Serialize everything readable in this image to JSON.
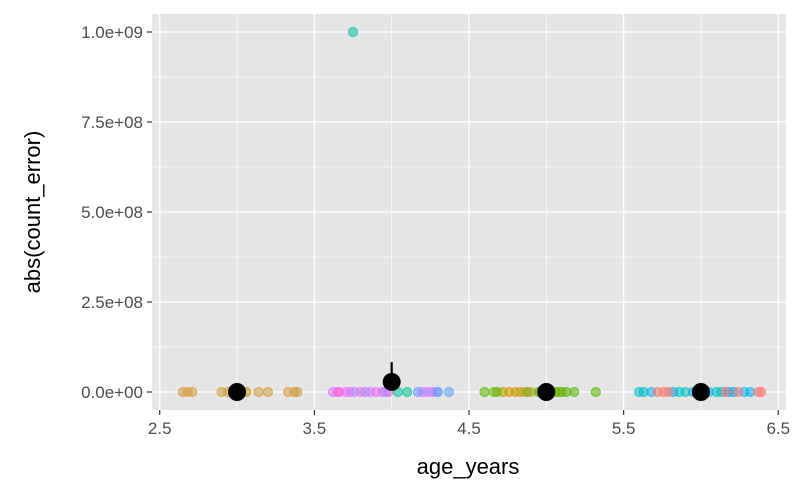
{
  "chart_data": {
    "type": "scatter",
    "title": "",
    "xlabel": "age_years",
    "ylabel": "abs(count_error)",
    "xlim": [
      2.45,
      6.55
    ],
    "ylim": [
      -50000000,
      1050000000
    ],
    "x_ticks": [
      2.5,
      3.5,
      4.5,
      5.5,
      6.5
    ],
    "x_tick_labels": [
      "2.5",
      "3.5",
      "4.5",
      "5.5",
      "6.5"
    ],
    "y_ticks": [
      0,
      250000000,
      500000000,
      750000000,
      1000000000
    ],
    "y_tick_labels": [
      "0.0e+00",
      "2.5e+08",
      "5.0e+08",
      "7.5e+08",
      "1.0e+09"
    ],
    "grid": true,
    "legend": "none",
    "colors": {
      "panel": "#e5e5e5",
      "grid": "#ffffff",
      "summary": "#000000",
      "point_palette": [
        "#d19a3b",
        "#f8766d",
        "#e76bf3",
        "#a58aff",
        "#00bfc4",
        "#00b0f6",
        "#53b400",
        "#7cae00",
        "#00c094",
        "#c49a00",
        "#619cff",
        "#fb61d7"
      ]
    },
    "series": [
      {
        "kind": "points",
        "color": "#d19a3b",
        "x": [
          2.65,
          2.68,
          2.71,
          2.9,
          2.94,
          3.14,
          3.2,
          3.33,
          3.37,
          3.39,
          4.86,
          4.9,
          4.96
        ],
        "y": [
          0,
          0,
          0,
          0,
          0,
          0,
          0,
          0,
          0,
          0,
          0,
          0,
          0
        ]
      },
      {
        "kind": "points",
        "color": "#c49a00",
        "x": [
          3.06,
          4.72,
          4.76,
          4.8,
          4.83
        ],
        "y": [
          0,
          0,
          0,
          0,
          0
        ]
      },
      {
        "kind": "points",
        "color": "#e76bf3",
        "x": [
          3.62,
          3.65,
          3.7,
          3.73,
          3.86,
          3.9,
          3.94,
          4.2,
          4.26
        ],
        "y": [
          0,
          0,
          0,
          0,
          0,
          0,
          0,
          0,
          0
        ]
      },
      {
        "kind": "points",
        "color": "#fb61d7",
        "x": [
          3.66,
          3.8,
          3.98
        ],
        "y": [
          0,
          0,
          0
        ]
      },
      {
        "kind": "points",
        "color": "#a58aff",
        "x": [
          3.76,
          3.83,
          3.96,
          4.23,
          4.29
        ],
        "y": [
          0,
          0,
          0,
          0,
          0
        ]
      },
      {
        "kind": "points",
        "color": "#00c094",
        "x": [
          3.75,
          4.04,
          4.1
        ],
        "y": [
          1000000000,
          0,
          0
        ]
      },
      {
        "kind": "points",
        "color": "#619cff",
        "x": [
          4.17,
          4.3,
          4.37
        ],
        "y": [
          0,
          0,
          0
        ]
      },
      {
        "kind": "points",
        "color": "#53b400",
        "x": [
          4.6,
          4.68,
          4.95,
          5.02,
          5.06,
          5.1,
          5.13,
          5.18,
          5.32
        ],
        "y": [
          0,
          0,
          0,
          0,
          0,
          0,
          0,
          0,
          0
        ]
      },
      {
        "kind": "points",
        "color": "#7cae00",
        "x": [
          4.66,
          4.88,
          5.08
        ],
        "y": [
          0,
          0,
          0
        ]
      },
      {
        "kind": "points",
        "color": "#00bfc4",
        "x": [
          5.6,
          5.63,
          5.86,
          5.9,
          6.1,
          6.13
        ],
        "y": [
          0,
          0,
          0,
          0,
          0,
          0
        ]
      },
      {
        "kind": "points",
        "color": "#00b0f6",
        "x": [
          5.68,
          5.82,
          5.95,
          6.05,
          6.18,
          6.21,
          6.28,
          6.32
        ],
        "y": [
          0,
          0,
          0,
          0,
          0,
          0,
          0,
          0
        ]
      },
      {
        "kind": "points",
        "color": "#f8766d",
        "x": [
          5.72,
          5.76,
          5.79,
          5.97,
          6.16,
          6.24,
          6.37,
          6.39
        ],
        "y": [
          0,
          0,
          0,
          0,
          0,
          0,
          0,
          0
        ]
      },
      {
        "kind": "summary",
        "color": "#000000",
        "x": [
          3,
          4,
          5,
          6
        ],
        "y": [
          0,
          28000000,
          0,
          0
        ],
        "error_high": [
          0,
          83000000,
          0,
          0
        ]
      }
    ]
  }
}
